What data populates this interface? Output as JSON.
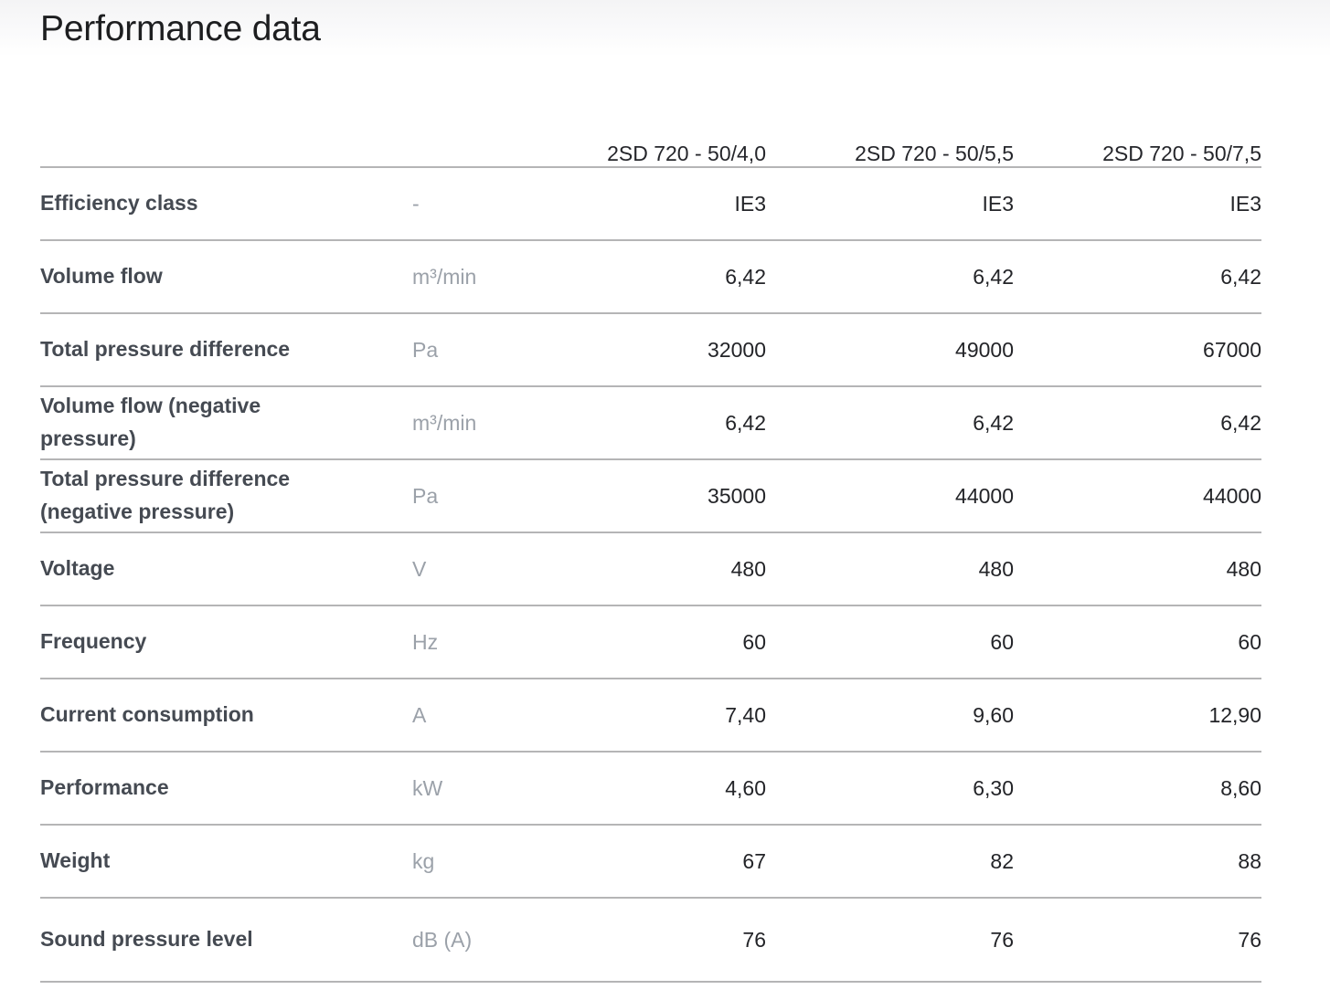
{
  "page": {
    "title": "Performance data"
  },
  "table": {
    "columns": [
      "2SD 720 - 50/4,0",
      "2SD 720 - 50/5,5",
      "2SD 720 - 50/7,5"
    ],
    "rows": [
      {
        "label": "Efficiency class",
        "unit": "-",
        "values": [
          "IE3",
          "IE3",
          "IE3"
        ]
      },
      {
        "label": "Volume flow",
        "unit": "m³/min",
        "values": [
          "6,42",
          "6,42",
          "6,42"
        ]
      },
      {
        "label": "Total pressure difference",
        "unit": "Pa",
        "values": [
          "32000",
          "49000",
          "67000"
        ]
      },
      {
        "label": "Volume flow (negative pressure)",
        "unit": "m³/min",
        "values": [
          "6,42",
          "6,42",
          "6,42"
        ]
      },
      {
        "label": "Total pressure difference (negative pressure)",
        "unit": "Pa",
        "values": [
          "35000",
          "44000",
          "44000"
        ]
      },
      {
        "label": "Voltage",
        "unit": "V",
        "values": [
          "480",
          "480",
          "480"
        ]
      },
      {
        "label": "Frequency",
        "unit": "Hz",
        "values": [
          "60",
          "60",
          "60"
        ]
      },
      {
        "label": "Current consumption",
        "unit": "A",
        "values": [
          "7,40",
          "9,60",
          "12,90"
        ]
      },
      {
        "label": "Performance",
        "unit": "kW",
        "values": [
          "4,60",
          "6,30",
          "8,60"
        ]
      },
      {
        "label": "Weight",
        "unit": "kg",
        "values": [
          "67",
          "82",
          "88"
        ]
      },
      {
        "label": "Sound pressure level",
        "unit": "dB (A)",
        "values": [
          "76",
          "76",
          "76"
        ]
      }
    ],
    "colors": {
      "title_text": "#1d1e20",
      "label_text": "#454a52",
      "unit_text": "#9ba1a9",
      "value_text": "#232428",
      "divider": "#b5b5b6",
      "page_gradient_top": "#f4f4f5"
    }
  }
}
